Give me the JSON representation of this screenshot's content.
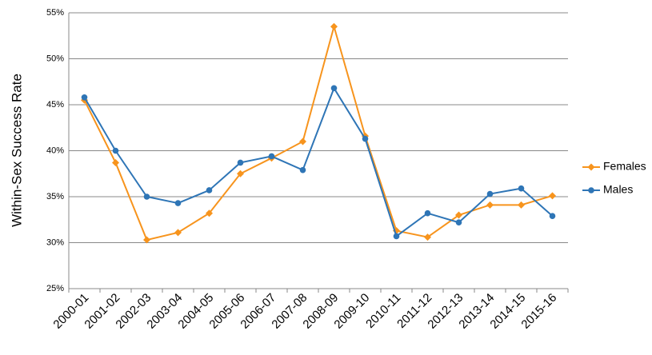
{
  "chart_data": {
    "type": "line",
    "y_label": "Within-Sex Success Rate",
    "categories": [
      "2000-01",
      "2001-02",
      "2002-03",
      "2003-04",
      "2004-05",
      "2005-06",
      "2006-07",
      "2007-08",
      "2008-09",
      "2009-10",
      "2010-11",
      "2011-12",
      "2012-13",
      "2013-14",
      "2014-15",
      "2015-16"
    ],
    "series": [
      {
        "name": "Females",
        "color": "#f7941d",
        "marker": "diamond",
        "values": [
          45.5,
          38.7,
          30.3,
          31.1,
          33.2,
          37.5,
          39.2,
          41.0,
          53.5,
          41.6,
          31.3,
          30.6,
          33.0,
          34.1,
          34.1,
          35.1
        ]
      },
      {
        "name": "Males",
        "color": "#2e75b6",
        "marker": "circle",
        "values": [
          45.8,
          40.0,
          35.0,
          34.3,
          35.7,
          38.7,
          39.4,
          37.9,
          46.8,
          41.3,
          30.7,
          33.2,
          32.2,
          35.3,
          35.9,
          32.9
        ]
      }
    ],
    "ylim": [
      25,
      55
    ],
    "yticks": [
      {
        "value": 25,
        "label": "25%"
      },
      {
        "value": 30,
        "label": "30%"
      },
      {
        "value": 35,
        "label": "35%"
      },
      {
        "value": 40,
        "label": "40%"
      },
      {
        "value": 45,
        "label": "45%"
      },
      {
        "value": 50,
        "label": "50%"
      },
      {
        "value": 55,
        "label": "55%"
      }
    ],
    "grid": true,
    "legend": "right"
  }
}
